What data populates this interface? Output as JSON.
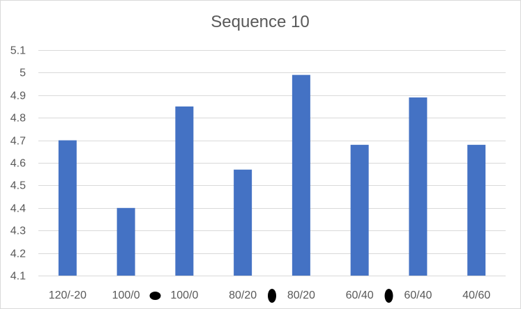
{
  "chart_data": {
    "type": "bar",
    "title": "Sequence 10",
    "xlabel": "",
    "ylabel": "",
    "categories": [
      "120/-20",
      "100/0",
      "100/0",
      "80/20",
      "80/20",
      "60/40",
      "60/40",
      "40/60"
    ],
    "values": [
      4.7,
      4.4,
      4.85,
      4.57,
      4.99,
      4.68,
      4.89,
      4.68
    ],
    "ylim": [
      4.1,
      5.1
    ],
    "yticks": [
      "4.1",
      "4.2",
      "4.3",
      "4.4",
      "4.5",
      "4.6",
      "4.7",
      "4.8",
      "4.9",
      "5",
      "5.1"
    ],
    "grid": true,
    "legend": "none",
    "bar_color": "#4472C4",
    "grid_color": "#D9D9D9",
    "text_color": "#595959",
    "annotations": [
      {
        "type": "black-oval-marker",
        "between_categories": [
          1,
          2
        ]
      },
      {
        "type": "black-oval-marker",
        "between_categories": [
          3,
          4
        ]
      },
      {
        "type": "black-oval-marker",
        "between_categories": [
          5,
          6
        ]
      }
    ]
  }
}
